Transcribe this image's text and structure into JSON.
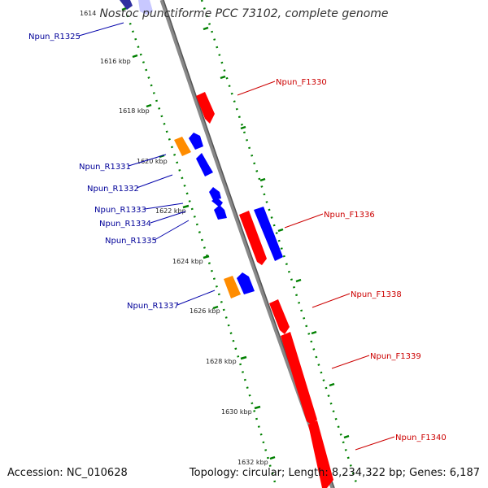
{
  "title": "Nostoc punctiforme PCC 73102, complete genome",
  "footer": {
    "accession": "Accession: NC_010628",
    "info": "Topology: circular; Length: 8,234,322 bp; Genes: 6,187"
  },
  "colors": {
    "forward": "#ff0000",
    "reverse": "#0000ff",
    "rna": "#ff8c00",
    "backbone": "#808080",
    "ticks": "#008000",
    "forward_label": "#cc0000",
    "reverse_label": "#000099"
  },
  "ticks": [
    "1614",
    "1616 kbp",
    "1618 kbp",
    "1620 kbp",
    "1622 kbp",
    "1624 kbp",
    "1626 kbp",
    "1628 kbp",
    "1630 kbp",
    "1632 kbp"
  ],
  "reverse_labels": [
    "Npun_R1325",
    "Npun_R1331",
    "Npun_R1332",
    "Npun_R1333",
    "Npun_R1334",
    "Npun_R1335",
    "Npun_R1337"
  ],
  "forward_labels": [
    "Npun_F1330",
    "Npun_F1336",
    "Npun_F1338",
    "Npun_F1339",
    "Npun_F1340"
  ]
}
